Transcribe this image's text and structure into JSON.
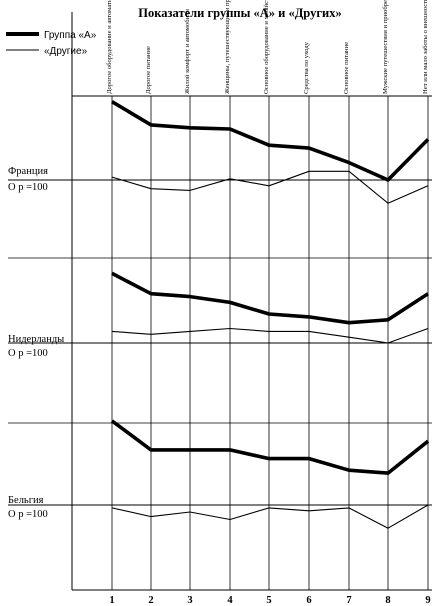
{
  "chart_data": {
    "type": "line",
    "title": "Показатели группы «А» и «Других»",
    "x": [
      1,
      2,
      3,
      4,
      5,
      6,
      7,
      8,
      9
    ],
    "categories": [
      "Дорогое оборудование и автоматизированное производство",
      "Дорогое питание",
      "Жилой комфорт и автомобили",
      "Женщины, путешествующие и приобретающие",
      "Основное оборудование и хозяйство",
      "Средства по уходу",
      "Основное питание",
      "Мужские путешествия и приобретения",
      "Нет или мало заботы о внешности"
    ],
    "legend": [
      {
        "name": "Группа «А»",
        "style": "thick"
      },
      {
        "name": "«Другие»",
        "style": "thin"
      }
    ],
    "panels": [
      {
        "label_line1": "Франция",
        "label_line2": "О р =100",
        "series": [
          {
            "name": "Группа «А»",
            "values": [
              235,
              195,
              190,
              188,
              160,
              155,
              130,
              100,
              170
            ]
          },
          {
            "name": "«Другие»",
            "values": [
              105,
              85,
              82,
              102,
              90,
              115,
              115,
              60,
              90
            ]
          }
        ]
      },
      {
        "label_line1": "Нидерланды",
        "label_line2": "О р =100",
        "series": [
          {
            "name": "Группа «А»",
            "values": [
              220,
              185,
              180,
              170,
              150,
              145,
              135,
              140,
              185
            ]
          },
          {
            "name": "«Другие»",
            "values": [
              120,
              115,
              120,
              125,
              120,
              120,
              110,
              100,
              125
            ]
          }
        ]
      },
      {
        "label_line1": "Бельгия",
        "label_line2": "О р =100",
        "series": [
          {
            "name": "Группа «А»",
            "values": [
              245,
              195,
              195,
              195,
              180,
              180,
              160,
              155,
              210
            ]
          },
          {
            "name": "«Другие»",
            "values": [
              95,
              80,
              88,
              75,
              95,
              90,
              95,
              60,
              100
            ]
          }
        ]
      }
    ],
    "reference_value": 100,
    "grid": "vertical category lines, horizontal reference line at 100 per panel"
  }
}
